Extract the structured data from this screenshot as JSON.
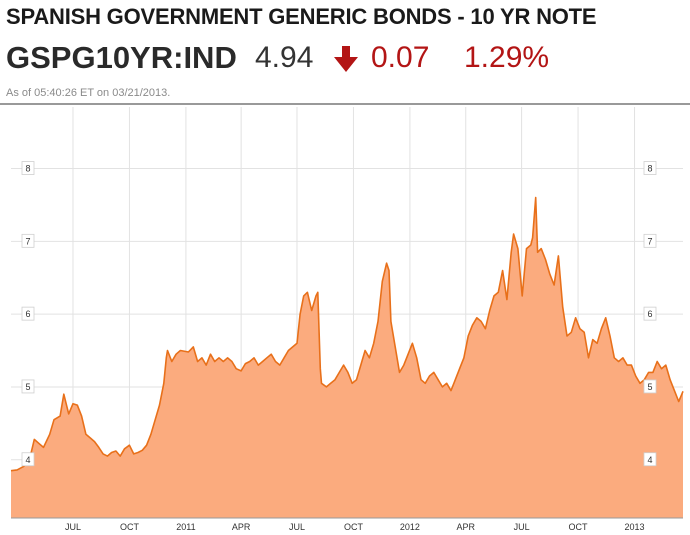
{
  "header": {
    "title": "SPANISH GOVERNMENT GENERIC BONDS - 10 YR NOTE",
    "ticker": "GSPG10YR:IND",
    "price": "4.94",
    "change": "0.07",
    "change_pct": "1.29%",
    "direction_icon": "arrow-down-icon",
    "timestamp": "As of 05:40:26 ET on 03/21/2013."
  },
  "colors": {
    "title": "#1a1a1a",
    "negative": "#b31515",
    "area_fill": "#fbab7e",
    "line": "#e8701a",
    "grid": "#e2e2e2",
    "rule": "#333333"
  },
  "chart_data": {
    "type": "area",
    "title": "",
    "xlabel": "",
    "ylabel": "",
    "ylim": [
      3.2,
      8.9
    ],
    "xlim": [
      "2010-03-22",
      "2013-03-21"
    ],
    "grid": true,
    "y_ticks": [
      4,
      5,
      6,
      7,
      8
    ],
    "y_tick_labels": [
      "4",
      "5",
      "6",
      "7",
      "8"
    ],
    "x_ticks": [
      "2010-07-01",
      "2010-10-01",
      "2011-01-01",
      "2011-04-01",
      "2011-07-01",
      "2011-10-01",
      "2012-01-01",
      "2012-04-01",
      "2012-07-01",
      "2012-10-01",
      "2013-01-01"
    ],
    "x_tick_labels": [
      "JUL",
      "OCT",
      "2011",
      "APR",
      "JUL",
      "OCT",
      "2012",
      "APR",
      "JUL",
      "OCT",
      "2013"
    ],
    "series": [
      {
        "points": [
          [
            "2010-03-22",
            3.85
          ],
          [
            "2010-04-01",
            3.86
          ],
          [
            "2010-04-12",
            3.91
          ],
          [
            "2010-04-22",
            4.03
          ],
          [
            "2010-04-29",
            4.28
          ],
          [
            "2010-05-07",
            4.22
          ],
          [
            "2010-05-14",
            4.17
          ],
          [
            "2010-05-24",
            4.35
          ],
          [
            "2010-05-31",
            4.55
          ],
          [
            "2010-06-10",
            4.6
          ],
          [
            "2010-06-16",
            4.9
          ],
          [
            "2010-06-24",
            4.63
          ],
          [
            "2010-07-01",
            4.77
          ],
          [
            "2010-07-08",
            4.75
          ],
          [
            "2010-07-15",
            4.6
          ],
          [
            "2010-07-22",
            4.35
          ],
          [
            "2010-07-29",
            4.3
          ],
          [
            "2010-08-05",
            4.25
          ],
          [
            "2010-08-12",
            4.17
          ],
          [
            "2010-08-19",
            4.08
          ],
          [
            "2010-08-26",
            4.05
          ],
          [
            "2010-09-02",
            4.1
          ],
          [
            "2010-09-09",
            4.12
          ],
          [
            "2010-09-16",
            4.05
          ],
          [
            "2010-09-23",
            4.15
          ],
          [
            "2010-10-01",
            4.2
          ],
          [
            "2010-10-08",
            4.08
          ],
          [
            "2010-10-15",
            4.1
          ],
          [
            "2010-10-22",
            4.13
          ],
          [
            "2010-10-29",
            4.2
          ],
          [
            "2010-11-05",
            4.35
          ],
          [
            "2010-11-12",
            4.55
          ],
          [
            "2010-11-19",
            4.75
          ],
          [
            "2010-11-26",
            5.05
          ],
          [
            "2010-11-30",
            5.4
          ],
          [
            "2010-12-02",
            5.5
          ],
          [
            "2010-12-09",
            5.35
          ],
          [
            "2010-12-16",
            5.45
          ],
          [
            "2010-12-23",
            5.5
          ],
          [
            "2011-01-05",
            5.48
          ],
          [
            "2011-01-13",
            5.55
          ],
          [
            "2011-01-20",
            5.35
          ],
          [
            "2011-01-27",
            5.4
          ],
          [
            "2011-02-03",
            5.3
          ],
          [
            "2011-02-10",
            5.45
          ],
          [
            "2011-02-17",
            5.35
          ],
          [
            "2011-02-24",
            5.4
          ],
          [
            "2011-03-03",
            5.35
          ],
          [
            "2011-03-10",
            5.4
          ],
          [
            "2011-03-17",
            5.35
          ],
          [
            "2011-03-24",
            5.25
          ],
          [
            "2011-04-01",
            5.22
          ],
          [
            "2011-04-08",
            5.32
          ],
          [
            "2011-04-15",
            5.35
          ],
          [
            "2011-04-22",
            5.4
          ],
          [
            "2011-04-29",
            5.3
          ],
          [
            "2011-05-06",
            5.35
          ],
          [
            "2011-05-13",
            5.4
          ],
          [
            "2011-05-20",
            5.45
          ],
          [
            "2011-05-27",
            5.35
          ],
          [
            "2011-06-03",
            5.3
          ],
          [
            "2011-06-10",
            5.4
          ],
          [
            "2011-06-17",
            5.5
          ],
          [
            "2011-06-24",
            5.55
          ],
          [
            "2011-07-01",
            5.6
          ],
          [
            "2011-07-06",
            6.0
          ],
          [
            "2011-07-12",
            6.25
          ],
          [
            "2011-07-18",
            6.3
          ],
          [
            "2011-07-25",
            6.05
          ],
          [
            "2011-08-01",
            6.25
          ],
          [
            "2011-08-04",
            6.3
          ],
          [
            "2011-08-08",
            5.25
          ],
          [
            "2011-08-10",
            5.05
          ],
          [
            "2011-08-18",
            5.0
          ],
          [
            "2011-08-25",
            5.05
          ],
          [
            "2011-09-01",
            5.1
          ],
          [
            "2011-09-08",
            5.2
          ],
          [
            "2011-09-15",
            5.3
          ],
          [
            "2011-09-22",
            5.2
          ],
          [
            "2011-09-29",
            5.05
          ],
          [
            "2011-10-06",
            5.1
          ],
          [
            "2011-10-13",
            5.3
          ],
          [
            "2011-10-20",
            5.5
          ],
          [
            "2011-10-27",
            5.4
          ],
          [
            "2011-11-03",
            5.6
          ],
          [
            "2011-11-10",
            5.9
          ],
          [
            "2011-11-17",
            6.45
          ],
          [
            "2011-11-24",
            6.7
          ],
          [
            "2011-11-28",
            6.6
          ],
          [
            "2011-12-01",
            5.9
          ],
          [
            "2011-12-08",
            5.55
          ],
          [
            "2011-12-15",
            5.2
          ],
          [
            "2011-12-22",
            5.3
          ],
          [
            "2012-01-05",
            5.6
          ],
          [
            "2012-01-12",
            5.4
          ],
          [
            "2012-01-19",
            5.1
          ],
          [
            "2012-01-26",
            5.05
          ],
          [
            "2012-02-02",
            5.15
          ],
          [
            "2012-02-09",
            5.2
          ],
          [
            "2012-02-16",
            5.1
          ],
          [
            "2012-02-23",
            5.0
          ],
          [
            "2012-03-01",
            5.05
          ],
          [
            "2012-03-08",
            4.95
          ],
          [
            "2012-03-15",
            5.1
          ],
          [
            "2012-03-22",
            5.25
          ],
          [
            "2012-03-29",
            5.4
          ],
          [
            "2012-04-05",
            5.7
          ],
          [
            "2012-04-12",
            5.85
          ],
          [
            "2012-04-19",
            5.95
          ],
          [
            "2012-04-26",
            5.9
          ],
          [
            "2012-05-03",
            5.8
          ],
          [
            "2012-05-10",
            6.05
          ],
          [
            "2012-05-17",
            6.25
          ],
          [
            "2012-05-24",
            6.3
          ],
          [
            "2012-05-31",
            6.6
          ],
          [
            "2012-06-07",
            6.2
          ],
          [
            "2012-06-14",
            6.85
          ],
          [
            "2012-06-18",
            7.1
          ],
          [
            "2012-06-25",
            6.9
          ],
          [
            "2012-07-02",
            6.25
          ],
          [
            "2012-07-09",
            6.9
          ],
          [
            "2012-07-16",
            6.95
          ],
          [
            "2012-07-19",
            7.05
          ],
          [
            "2012-07-24",
            7.6
          ],
          [
            "2012-07-27",
            6.85
          ],
          [
            "2012-08-02",
            6.9
          ],
          [
            "2012-08-09",
            6.75
          ],
          [
            "2012-08-16",
            6.55
          ],
          [
            "2012-08-23",
            6.4
          ],
          [
            "2012-08-30",
            6.8
          ],
          [
            "2012-09-06",
            6.1
          ],
          [
            "2012-09-13",
            5.7
          ],
          [
            "2012-09-20",
            5.75
          ],
          [
            "2012-09-27",
            5.95
          ],
          [
            "2012-10-04",
            5.8
          ],
          [
            "2012-10-11",
            5.75
          ],
          [
            "2012-10-18",
            5.4
          ],
          [
            "2012-10-25",
            5.65
          ],
          [
            "2012-11-01",
            5.6
          ],
          [
            "2012-11-08",
            5.8
          ],
          [
            "2012-11-15",
            5.95
          ],
          [
            "2012-11-22",
            5.7
          ],
          [
            "2012-11-29",
            5.4
          ],
          [
            "2012-12-06",
            5.35
          ],
          [
            "2012-12-13",
            5.4
          ],
          [
            "2012-12-20",
            5.3
          ],
          [
            "2012-12-27",
            5.3
          ],
          [
            "2013-01-03",
            5.15
          ],
          [
            "2013-01-10",
            5.05
          ],
          [
            "2013-01-17",
            5.1
          ],
          [
            "2013-01-24",
            5.2
          ],
          [
            "2013-01-31",
            5.2
          ],
          [
            "2013-02-07",
            5.35
          ],
          [
            "2013-02-14",
            5.25
          ],
          [
            "2013-02-21",
            5.3
          ],
          [
            "2013-02-28",
            5.1
          ],
          [
            "2013-03-07",
            4.95
          ],
          [
            "2013-03-14",
            4.8
          ],
          [
            "2013-03-18",
            4.88
          ],
          [
            "2013-03-21",
            4.94
          ]
        ]
      }
    ]
  }
}
